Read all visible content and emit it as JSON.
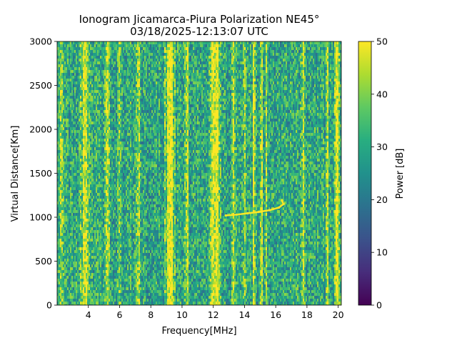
{
  "chart_data": {
    "type": "heatmap",
    "title": "Ionogram Jicamarca-Piura Polarization NE45°",
    "subtitle": "03/18/2025-12:13:07 UTC",
    "xlabel": "Frequency[MHz]",
    "ylabel": "Virtual Distance[Km]",
    "xlim": [
      2.0,
      20.2
    ],
    "ylim": [
      0,
      3000
    ],
    "x_ticks": [
      4,
      6,
      8,
      10,
      12,
      14,
      16,
      18,
      20
    ],
    "y_ticks": [
      0,
      500,
      1000,
      1500,
      2000,
      2500,
      3000
    ],
    "colorbar": {
      "label": "Power [dB]",
      "range": [
        0,
        50
      ],
      "ticks": [
        0,
        10,
        20,
        30,
        40,
        50
      ],
      "colormap": "viridis"
    },
    "background_level_db": 30,
    "interference_bands_mhz": [
      {
        "center": 2.3,
        "width": 0.15,
        "level_db": 40
      },
      {
        "center": 3.8,
        "width": 0.3,
        "level_db": 46
      },
      {
        "center": 5.2,
        "width": 0.2,
        "level_db": 43
      },
      {
        "center": 6.0,
        "width": 0.12,
        "level_db": 42
      },
      {
        "center": 7.2,
        "width": 0.15,
        "level_db": 42
      },
      {
        "center": 9.2,
        "width": 0.35,
        "level_db": 49
      },
      {
        "center": 10.3,
        "width": 0.15,
        "level_db": 44
      },
      {
        "center": 12.1,
        "width": 0.45,
        "level_db": 48
      },
      {
        "center": 13.3,
        "width": 0.1,
        "level_db": 42
      },
      {
        "center": 14.0,
        "width": 0.1,
        "level_db": 44
      },
      {
        "center": 14.6,
        "width": 0.08,
        "level_db": 47
      },
      {
        "center": 15.1,
        "width": 0.08,
        "level_db": 48
      },
      {
        "center": 15.4,
        "width": 0.06,
        "level_db": 46
      },
      {
        "center": 17.8,
        "width": 0.12,
        "level_db": 47
      },
      {
        "center": 19.3,
        "width": 0.12,
        "level_db": 46
      },
      {
        "center": 19.9,
        "width": 0.2,
        "level_db": 49
      }
    ],
    "echo_trace": {
      "description_level_db": 50,
      "points": [
        {
          "x": 12.8,
          "y": 1020
        },
        {
          "x": 13.5,
          "y": 1030
        },
        {
          "x": 14.2,
          "y": 1045
        },
        {
          "x": 14.9,
          "y": 1060
        },
        {
          "x": 15.6,
          "y": 1080
        },
        {
          "x": 16.2,
          "y": 1110
        },
        {
          "x": 16.5,
          "y": 1150
        },
        {
          "x": 16.4,
          "y": 1190
        }
      ]
    }
  }
}
